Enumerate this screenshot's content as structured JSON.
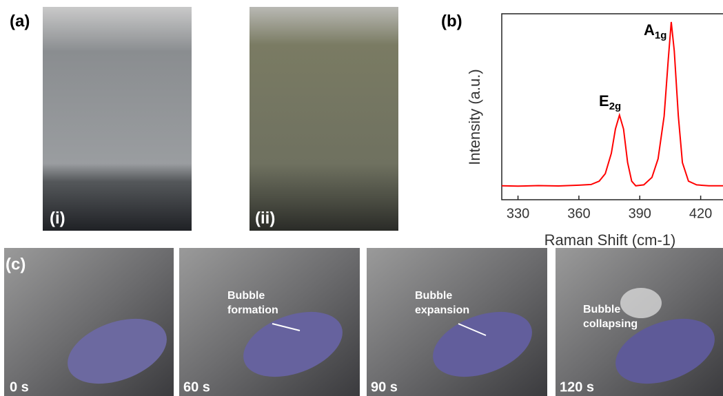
{
  "panel_a": {
    "label": "(a)",
    "images": [
      {
        "label": "(i)"
      },
      {
        "label": "(ii)"
      }
    ]
  },
  "chart_data": {
    "type": "line",
    "panel_label": "(b)",
    "xlabel": "Raman Shift (cm-1)",
    "ylabel": "Intensity (a.u.)",
    "x": [
      322,
      330,
      340,
      350,
      360,
      366,
      370,
      373,
      376,
      378,
      380,
      382,
      384,
      386,
      388,
      392,
      396,
      399,
      402,
      404,
      405.5,
      407,
      409,
      411,
      414,
      418,
      424,
      431
    ],
    "series": [
      {
        "color": "#ff0000",
        "values": [
          7.5,
          7.3,
          7.6,
          7.4,
          7.8,
          8.2,
          10,
          14,
          25,
          38,
          45.5,
          38,
          20,
          10,
          7.5,
          8,
          12,
          22,
          45,
          75,
          95.6,
          80,
          45,
          20,
          10,
          8,
          7.5,
          7.5
        ]
      }
    ],
    "xlim": [
      322,
      431
    ],
    "xticks": [
      330,
      360,
      390,
      420
    ],
    "ylim": [
      0,
      100
    ],
    "annotations": [
      {
        "text": "E",
        "sub": "2g"
      },
      {
        "text": "A",
        "sub": "1g"
      }
    ]
  },
  "panel_c": {
    "label": "(c)",
    "frames": [
      {
        "time": "0 s"
      },
      {
        "time": "60 s",
        "caption": [
          "Bubble",
          "formation"
        ]
      },
      {
        "time": "90 s",
        "caption": [
          "Bubble",
          "expansion"
        ]
      },
      {
        "time": "120 s",
        "caption": [
          "Bubble",
          "collapsing"
        ]
      }
    ]
  }
}
